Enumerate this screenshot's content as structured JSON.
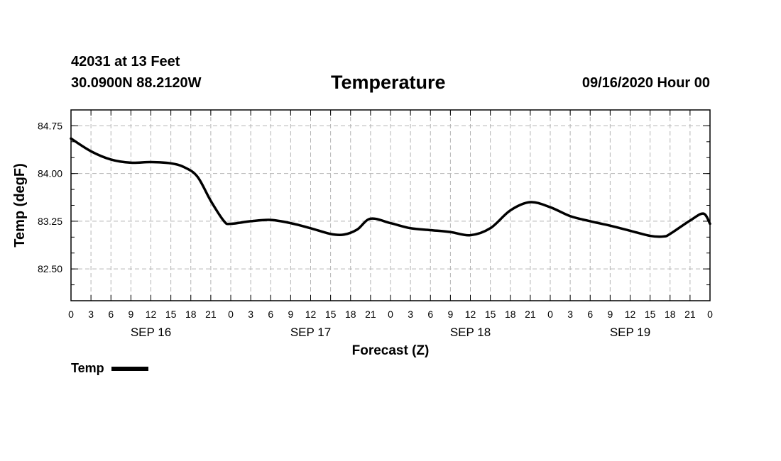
{
  "header": {
    "station": "42031 at 13 Feet",
    "coords": "30.0900N 88.2120W",
    "title": "Temperature",
    "datetime": "09/16/2020 Hour 00"
  },
  "chart_data": {
    "type": "line",
    "title": "Temperature",
    "xlabel": "Forecast (Z)",
    "ylabel": "Temp (degF)",
    "ylim": [
      82.0,
      85.0
    ],
    "yticks": [
      82.5,
      83.25,
      84.0,
      84.75
    ],
    "ytick_labels": [
      "82.50",
      "83.25",
      "84.00",
      "84.75"
    ],
    "xlim": [
      0,
      96
    ],
    "x_tick_step_hours": 3,
    "xtick_labels": [
      "0",
      "3",
      "6",
      "9",
      "12",
      "15",
      "18",
      "21",
      "0",
      "3",
      "6",
      "9",
      "12",
      "15",
      "18",
      "21",
      "0",
      "3",
      "6",
      "9",
      "12",
      "15",
      "18",
      "21",
      "0",
      "3",
      "6",
      "9",
      "12",
      "15",
      "18",
      "21",
      "0"
    ],
    "day_labels": [
      {
        "label": "SEP 16",
        "center_hour": 12
      },
      {
        "label": "SEP 17",
        "center_hour": 36
      },
      {
        "label": "SEP 18",
        "center_hour": 60
      },
      {
        "label": "SEP 19",
        "center_hour": 84
      }
    ],
    "grid": true,
    "series": [
      {
        "name": "Temp",
        "color": "#000000",
        "x": [
          0,
          3,
          6,
          9,
          12,
          15,
          17,
          19,
          21,
          23,
          24,
          27,
          30,
          33,
          36,
          39,
          41,
          43,
          45,
          48,
          51,
          54,
          57,
          60,
          63,
          66,
          69,
          72,
          75,
          78,
          81,
          84,
          87,
          89,
          90,
          93,
          95,
          96
        ],
        "values": [
          84.55,
          84.35,
          84.22,
          84.17,
          84.18,
          84.16,
          84.1,
          83.95,
          83.57,
          83.25,
          83.21,
          83.25,
          83.27,
          83.22,
          83.14,
          83.05,
          83.04,
          83.12,
          83.29,
          83.22,
          83.14,
          83.11,
          83.08,
          83.03,
          83.14,
          83.42,
          83.55,
          83.47,
          83.33,
          83.25,
          83.18,
          83.1,
          83.02,
          83.01,
          83.05,
          83.26,
          83.37,
          83.21
        ]
      }
    ],
    "legend": {
      "label": "Temp",
      "placement": "bottom-left"
    }
  }
}
